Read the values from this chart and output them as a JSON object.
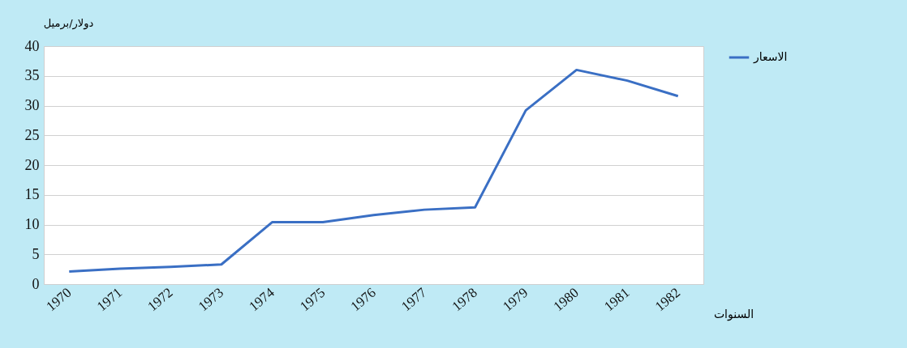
{
  "chart_data": {
    "type": "line",
    "xlabel": "السنوات",
    "ylabel": "دولار/برميل",
    "categories": [
      "1970",
      "1971",
      "1972",
      "1973",
      "1974",
      "1975",
      "1976",
      "1977",
      "1978",
      "1979",
      "1980",
      "1981",
      "1982"
    ],
    "series": [
      {
        "name": "الاسعار",
        "color": "#3a6fc4",
        "values": [
          2.1,
          2.6,
          2.9,
          3.3,
          10.4,
          10.4,
          11.6,
          12.5,
          12.9,
          29.2,
          36.0,
          34.2,
          31.6
        ]
      }
    ],
    "ylim": [
      0,
      40
    ],
    "yticks": [
      0,
      5,
      10,
      15,
      20,
      25,
      30,
      35,
      40
    ],
    "grid": "y",
    "legend": "right",
    "marker": "none",
    "line_style": "solid"
  }
}
